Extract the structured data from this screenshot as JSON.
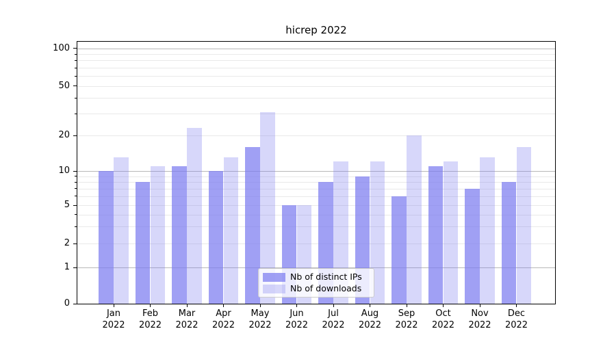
{
  "chart_data": {
    "type": "bar",
    "title": "hicrep 2022",
    "categories": [
      "Jan",
      "Feb",
      "Mar",
      "Apr",
      "May",
      "Jun",
      "Jul",
      "Aug",
      "Sep",
      "Oct",
      "Nov",
      "Dec"
    ],
    "category_year": "2022",
    "series": [
      {
        "name": "Nb of distinct IPs",
        "values": [
          10,
          8,
          11,
          10,
          16,
          5,
          8,
          9,
          6,
          11,
          7,
          8
        ],
        "color": "rgba(123,123,240,0.72)"
      },
      {
        "name": "Nb of downloads",
        "values": [
          13,
          11,
          23,
          13,
          31,
          5,
          12,
          12,
          20,
          12,
          13,
          16
        ],
        "color": "rgba(123,123,240,0.30)"
      }
    ],
    "yscale": "symlog",
    "ylim": [
      0,
      120
    ],
    "yticks": [
      0,
      1,
      2,
      5,
      10,
      20,
      50,
      100
    ],
    "ytick_labels": [
      "0",
      "1",
      "2",
      "5",
      "10",
      "20",
      "50",
      "100"
    ],
    "minor_gridline_values": [
      2,
      3,
      4,
      5,
      6,
      7,
      8,
      9,
      20,
      30,
      40,
      50,
      60,
      70,
      80,
      90
    ],
    "major_gridline_values": [
      1,
      10,
      100
    ],
    "minor_tick_values": [
      3,
      4,
      6,
      7,
      8,
      9,
      30,
      40,
      60,
      70,
      80,
      90
    ],
    "grid": true,
    "legend_position": "lower center",
    "colors": {
      "bar_base": "#7b7bf0",
      "grid_minor": "#e9e9e9",
      "grid_major": "#b8b8b8",
      "spine": "#000000",
      "text": "#000000",
      "legend_border": "#cccccc",
      "legend_bg": "rgba(255,255,255,0.8)"
    }
  }
}
